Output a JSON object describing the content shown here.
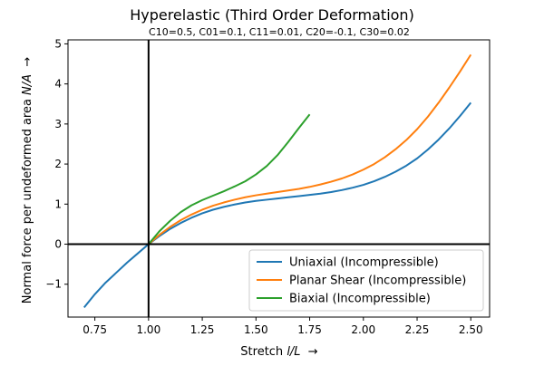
{
  "chart_data": {
    "type": "line",
    "title": "Hyperelastic (Third Order Deformation)",
    "subtitle": "C10=0.5, C01=0.1, C11=0.01, C20=-0.1, C30=0.02",
    "xlabel_parts": [
      "Stretch ",
      "l/L",
      "  →"
    ],
    "ylabel_parts": [
      "Normal force per undeformed area ",
      "N/A",
      "  →"
    ],
    "xlim": [
      0.625,
      2.5875
    ],
    "ylim": [
      -1.82,
      5.1
    ],
    "xticks": [
      0.75,
      1.0,
      1.25,
      1.5,
      1.75,
      2.0,
      2.25,
      2.5
    ],
    "xtick_labels": [
      "0.75",
      "1.00",
      "1.25",
      "1.50",
      "1.75",
      "2.00",
      "2.25",
      "2.50"
    ],
    "yticks": [
      -1,
      0,
      1,
      2,
      3,
      4,
      5
    ],
    "ytick_labels": [
      "−1",
      "0",
      "1",
      "2",
      "3",
      "4",
      "5"
    ],
    "grid": false,
    "reference_lines": {
      "x": 1.0,
      "y": 0
    },
    "legend_position": "lower-right",
    "series": [
      {
        "name": "Uniaxial (Incompressible)",
        "color": "#1f77b4",
        "x": [
          0.7,
          0.75,
          0.8,
          0.85,
          0.9,
          0.95,
          1.0,
          1.05,
          1.1,
          1.15,
          1.2,
          1.25,
          1.3,
          1.35,
          1.4,
          1.45,
          1.5,
          1.55,
          1.6,
          1.65,
          1.7,
          1.75,
          1.8,
          1.85,
          1.9,
          1.95,
          2.0,
          2.05,
          2.1,
          2.15,
          2.2,
          2.25,
          2.3,
          2.35,
          2.4,
          2.45,
          2.5
        ],
        "y": [
          -1.58,
          -1.25,
          -0.96,
          -0.71,
          -0.46,
          -0.23,
          0.0,
          0.2,
          0.38,
          0.53,
          0.66,
          0.77,
          0.86,
          0.93,
          0.99,
          1.04,
          1.08,
          1.11,
          1.14,
          1.17,
          1.2,
          1.23,
          1.26,
          1.3,
          1.35,
          1.41,
          1.48,
          1.57,
          1.68,
          1.81,
          1.96,
          2.14,
          2.36,
          2.61,
          2.89,
          3.2,
          3.53
        ]
      },
      {
        "name": "Planar Shear (Incompressible)",
        "color": "#ff7f0e",
        "x": [
          1.0,
          1.05,
          1.1,
          1.15,
          1.2,
          1.25,
          1.3,
          1.35,
          1.4,
          1.45,
          1.5,
          1.55,
          1.6,
          1.65,
          1.7,
          1.75,
          1.8,
          1.85,
          1.9,
          1.95,
          2.0,
          2.05,
          2.1,
          2.15,
          2.2,
          2.25,
          2.3,
          2.35,
          2.4,
          2.45,
          2.5
        ],
        "y": [
          0.0,
          0.23,
          0.43,
          0.6,
          0.74,
          0.86,
          0.96,
          1.04,
          1.11,
          1.17,
          1.22,
          1.26,
          1.3,
          1.34,
          1.38,
          1.43,
          1.49,
          1.56,
          1.64,
          1.74,
          1.86,
          2.0,
          2.17,
          2.37,
          2.6,
          2.87,
          3.18,
          3.53,
          3.91,
          4.31,
          4.73
        ]
      },
      {
        "name": "Biaxial (Incompressible)",
        "color": "#2ca02c",
        "x": [
          1.0,
          1.05,
          1.1,
          1.15,
          1.2,
          1.25,
          1.3,
          1.35,
          1.4,
          1.45,
          1.5,
          1.55,
          1.6,
          1.65,
          1.7,
          1.75
        ],
        "y": [
          0.0,
          0.32,
          0.58,
          0.8,
          0.97,
          1.1,
          1.21,
          1.32,
          1.44,
          1.57,
          1.74,
          1.95,
          2.22,
          2.55,
          2.9,
          3.24
        ]
      }
    ]
  }
}
